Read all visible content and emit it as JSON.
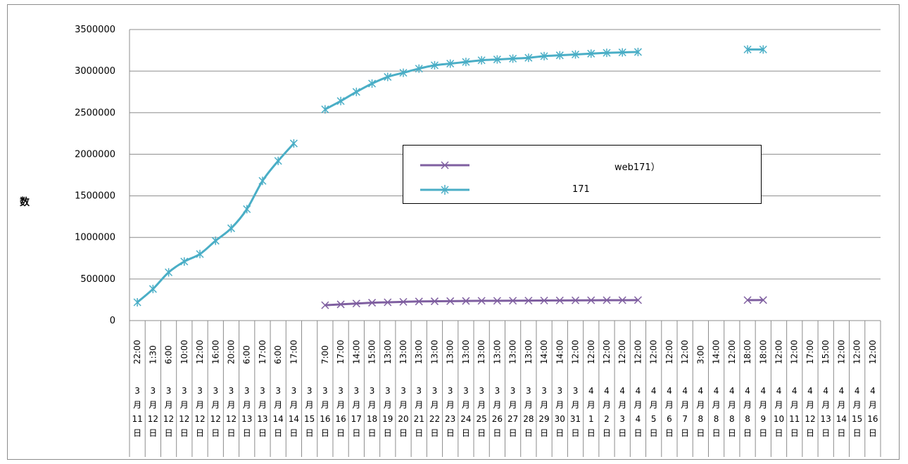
{
  "chart_data": {
    "type": "line",
    "ylabel": "数",
    "ylim": [
      0,
      3500000
    ],
    "ytick_step": 500000,
    "grid": true,
    "legend_position": "center",
    "x": [
      {
        "time": "22:00",
        "month": "3",
        "unit": "月",
        "day": "11",
        "suffix": "日"
      },
      {
        "time": "1:30",
        "month": "3",
        "unit": "月",
        "day": "12",
        "suffix": "日"
      },
      {
        "time": "6:00",
        "month": "3",
        "unit": "月",
        "day": "12",
        "suffix": "日"
      },
      {
        "time": "10:00",
        "month": "3",
        "unit": "月",
        "day": "12",
        "suffix": "日"
      },
      {
        "time": "12:00",
        "month": "3",
        "unit": "月",
        "day": "12",
        "suffix": "日"
      },
      {
        "time": "16:00",
        "month": "3",
        "unit": "月",
        "day": "12",
        "suffix": "日"
      },
      {
        "time": "20:00",
        "month": "3",
        "unit": "月",
        "day": "12",
        "suffix": "日"
      },
      {
        "time": "6:00",
        "month": "3",
        "unit": "月",
        "day": "13",
        "suffix": "日"
      },
      {
        "time": "17:00",
        "month": "3",
        "unit": "月",
        "day": "13",
        "suffix": "日"
      },
      {
        "time": "6:00",
        "month": "3",
        "unit": "月",
        "day": "14",
        "suffix": "日"
      },
      {
        "time": "17:00",
        "month": "3",
        "unit": "月",
        "day": "14",
        "suffix": "日"
      },
      {
        "time": "",
        "month": "3",
        "unit": "月",
        "day": "15",
        "suffix": "日"
      },
      {
        "time": "7:00",
        "month": "3",
        "unit": "月",
        "day": "16",
        "suffix": "日"
      },
      {
        "time": "17:00",
        "month": "3",
        "unit": "月",
        "day": "16",
        "suffix": "日"
      },
      {
        "time": "14:00",
        "month": "3",
        "unit": "月",
        "day": "17",
        "suffix": "日"
      },
      {
        "time": "15:00",
        "month": "3",
        "unit": "月",
        "day": "18",
        "suffix": "日"
      },
      {
        "time": "13:00",
        "month": "3",
        "unit": "月",
        "day": "19",
        "suffix": "日"
      },
      {
        "time": "13:00",
        "month": "3",
        "unit": "月",
        "day": "20",
        "suffix": "日"
      },
      {
        "time": "13:00",
        "month": "3",
        "unit": "月",
        "day": "21",
        "suffix": "日"
      },
      {
        "time": "13:00",
        "month": "3",
        "unit": "月",
        "day": "22",
        "suffix": "日"
      },
      {
        "time": "13:00",
        "month": "3",
        "unit": "月",
        "day": "23",
        "suffix": "日"
      },
      {
        "time": "13:00",
        "month": "3",
        "unit": "月",
        "day": "24",
        "suffix": "日"
      },
      {
        "time": "13:00",
        "month": "3",
        "unit": "月",
        "day": "25",
        "suffix": "日"
      },
      {
        "time": "13:00",
        "month": "3",
        "unit": "月",
        "day": "26",
        "suffix": "日"
      },
      {
        "time": "13:00",
        "month": "3",
        "unit": "月",
        "day": "27",
        "suffix": "日"
      },
      {
        "time": "13:00",
        "month": "3",
        "unit": "月",
        "day": "28",
        "suffix": "日"
      },
      {
        "time": "14:00",
        "month": "3",
        "unit": "月",
        "day": "29",
        "suffix": "日"
      },
      {
        "time": "14:00",
        "month": "3",
        "unit": "月",
        "day": "30",
        "suffix": "日"
      },
      {
        "time": "12:00",
        "month": "3",
        "unit": "月",
        "day": "31",
        "suffix": "日"
      },
      {
        "time": "12:00",
        "month": "4",
        "unit": "月",
        "day": "1",
        "suffix": "日"
      },
      {
        "time": "12:00",
        "month": "4",
        "unit": "月",
        "day": "2",
        "suffix": "日"
      },
      {
        "time": "12:00",
        "month": "4",
        "unit": "月",
        "day": "3",
        "suffix": "日"
      },
      {
        "time": "12:00",
        "month": "4",
        "unit": "月",
        "day": "4",
        "suffix": "日"
      },
      {
        "time": "12:00",
        "month": "4",
        "unit": "月",
        "day": "5",
        "suffix": "日"
      },
      {
        "time": "12:00",
        "month": "4",
        "unit": "月",
        "day": "6",
        "suffix": "日"
      },
      {
        "time": "12:00",
        "month": "4",
        "unit": "月",
        "day": "7",
        "suffix": "日"
      },
      {
        "time": "3:00",
        "month": "4",
        "unit": "月",
        "day": "8",
        "suffix": "日"
      },
      {
        "time": "14:00",
        "month": "4",
        "unit": "月",
        "day": "8",
        "suffix": "日"
      },
      {
        "time": "12:00",
        "month": "4",
        "unit": "月",
        "day": "8",
        "suffix": "日"
      },
      {
        "time": "18:00",
        "month": "4",
        "unit": "月",
        "day": "8",
        "suffix": "日"
      },
      {
        "time": "18:00",
        "month": "4",
        "unit": "月",
        "day": "9",
        "suffix": "日"
      },
      {
        "time": "12:00",
        "month": "4",
        "unit": "月",
        "day": "10",
        "suffix": "日"
      },
      {
        "time": "12:00",
        "month": "4",
        "unit": "月",
        "day": "11",
        "suffix": "日"
      },
      {
        "time": "17:00",
        "month": "4",
        "unit": "月",
        "day": "12",
        "suffix": "日"
      },
      {
        "time": "15:00",
        "month": "4",
        "unit": "月",
        "day": "13",
        "suffix": "日"
      },
      {
        "time": "12:00",
        "month": "4",
        "unit": "月",
        "day": "14",
        "suffix": "日"
      },
      {
        "time": "12:00",
        "month": "4",
        "unit": "月",
        "day": "15",
        "suffix": "日"
      },
      {
        "time": "12:00",
        "month": "4",
        "unit": "月",
        "day": "16",
        "suffix": "日"
      }
    ],
    "series": [
      {
        "name": "web171）",
        "color": "#7f5fa0",
        "marker": "x",
        "values": [
          null,
          null,
          null,
          null,
          null,
          null,
          null,
          null,
          null,
          null,
          null,
          null,
          185000,
          195000,
          205000,
          215000,
          220000,
          225000,
          230000,
          232000,
          234000,
          236000,
          238000,
          238000,
          239000,
          240000,
          241000,
          242000,
          243000,
          244000,
          245000,
          245000,
          246000,
          null,
          null,
          null,
          null,
          null,
          null,
          246000,
          247000,
          null,
          null,
          null,
          null,
          null,
          null,
          null
        ]
      },
      {
        "name": "171",
        "color": "#4aaec6",
        "marker": "asterisk",
        "values": [
          220000,
          380000,
          580000,
          710000,
          800000,
          960000,
          1110000,
          1340000,
          1680000,
          1920000,
          2130000,
          null,
          2540000,
          2640000,
          2750000,
          2850000,
          2930000,
          2980000,
          3030000,
          3070000,
          3090000,
          3110000,
          3130000,
          3140000,
          3150000,
          3160000,
          3180000,
          3190000,
          3200000,
          3210000,
          3220000,
          3225000,
          3230000,
          null,
          null,
          null,
          null,
          null,
          null,
          3260000,
          3260000,
          null,
          null,
          null,
          null,
          null,
          null,
          null
        ]
      }
    ]
  }
}
